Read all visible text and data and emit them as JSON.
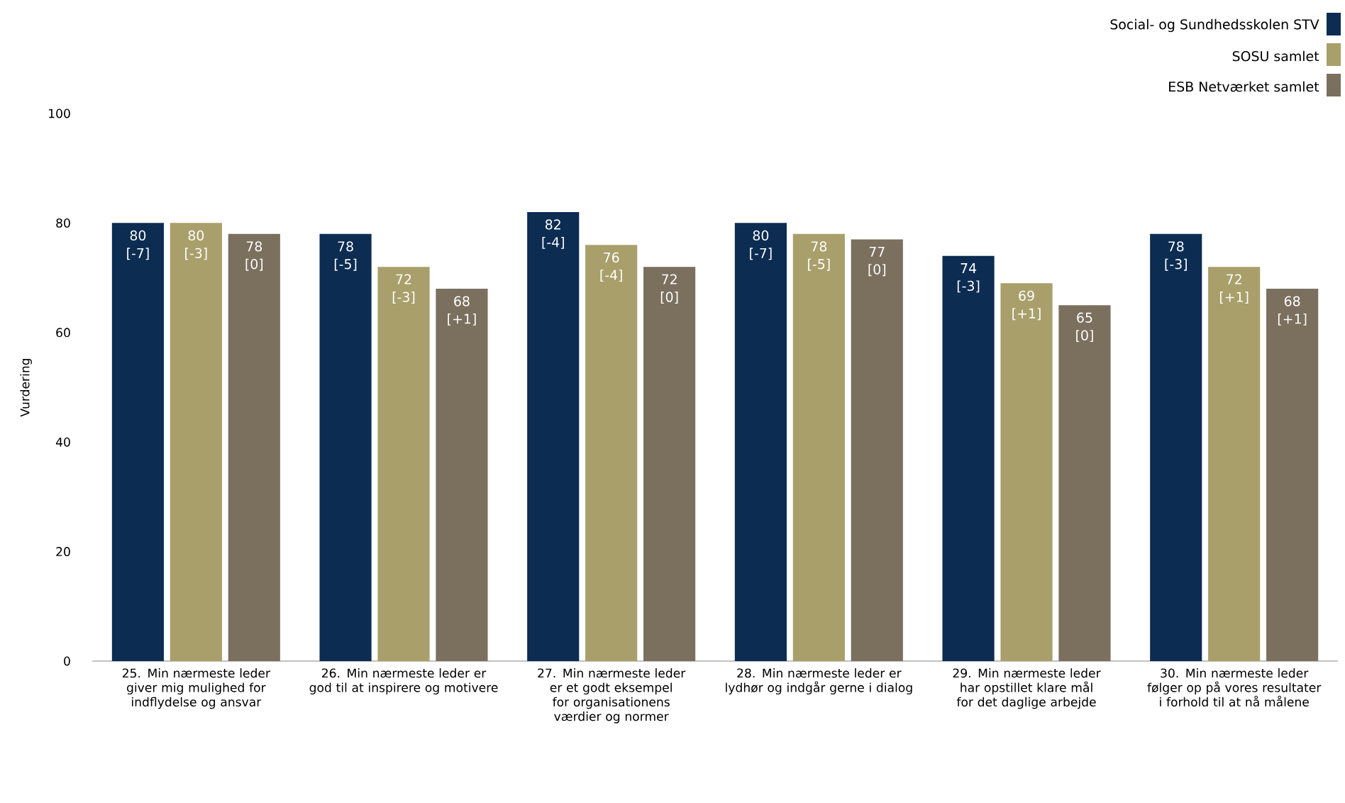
{
  "chart_data": {
    "type": "bar",
    "ylabel": "Vurdering",
    "categories": [
      "25. Min nærmeste leder giver mig mulighed for indflydelse og ansvar",
      "26. Min nærmeste leder er god til at inspirere og motivere",
      "27. Min nærmeste leder er et godt eksempel for organisationens værdier og normer",
      "28. Min nærmeste leder er lydhør og indgår gerne i dialog",
      "29. Min nærmeste leder har opstillet klare mål for det daglige arbejde",
      "30. Min nærmeste leder følger op på vores resultater i forhold til at nå målene"
    ],
    "series": [
      {
        "name": "Social- og Sundhedsskolen STV",
        "color": "#0c2c52",
        "values": [
          80,
          78,
          82,
          80,
          74,
          78
        ],
        "value_labels": [
          "80 [-7]",
          "78 [-5]",
          "82 [-4]",
          "80 [-7]",
          "74 [-3]",
          "78 [-3]"
        ]
      },
      {
        "name": "SOSU samlet",
        "color": "#a99f6b",
        "values": [
          80,
          72,
          76,
          78,
          69,
          72
        ],
        "value_labels": [
          "80 [-3]",
          "72 [-3]",
          "76 [-4]",
          "78 [-5]",
          "69 [+1]",
          "72 [+1]"
        ]
      },
      {
        "name": "ESB Netværket samlet",
        "color": "#7b6f5e",
        "values": [
          78,
          68,
          72,
          77,
          65,
          68
        ],
        "value_labels": [
          "78 [0]",
          "68 [+1]",
          "72 [0]",
          "77 [0]",
          "65 [0]",
          "68 [+1]"
        ]
      }
    ],
    "ylim": [
      0,
      100
    ],
    "yticks": [
      0,
      20,
      40,
      60,
      80,
      100
    ],
    "legend": "top right"
  }
}
